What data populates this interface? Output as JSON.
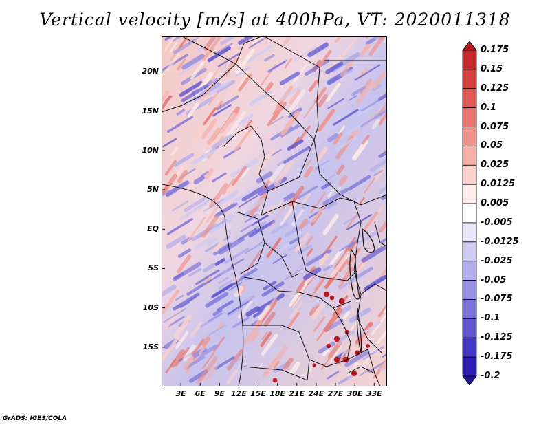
{
  "title": "Vertical velocity [m/s] at 400hPa, VT: 2020011318",
  "credit": "GrADS: IGES/COLA",
  "map": {
    "lon_range": [
      0,
      35
    ],
    "lat_range": [
      -20,
      24.5
    ],
    "yticks": [
      "20N",
      "15N",
      "10N",
      "5N",
      "EQ",
      "5S",
      "10S",
      "15S"
    ],
    "ytick_values": [
      20,
      15,
      10,
      5,
      0,
      -5,
      -10,
      -15
    ],
    "xticks": [
      "3E",
      "6E",
      "9E",
      "12E",
      "15E",
      "18E",
      "21E",
      "24E",
      "27E",
      "30E",
      "33E"
    ],
    "xtick_values": [
      3,
      6,
      9,
      12,
      15,
      18,
      21,
      24,
      27,
      30,
      33
    ]
  },
  "colorbar": {
    "labels": [
      "0.175",
      "0.15",
      "0.125",
      "0.1",
      "0.075",
      "0.05",
      "0.025",
      "0.0125",
      "0.005",
      "-0.005",
      "-0.0125",
      "-0.025",
      "-0.05",
      "-0.075",
      "-0.1",
      "-0.125",
      "-0.175",
      "-0.2"
    ],
    "colors": [
      "#b8161e",
      "#c62b2e",
      "#d4403e",
      "#df5a55",
      "#e8766f",
      "#ef948c",
      "#f5b2ab",
      "#fad2cd",
      "#fdeceb",
      "#ffffff",
      "#e8e6f7",
      "#cfcbf1",
      "#b3aeea",
      "#9891e3",
      "#7c74db",
      "#6057d1",
      "#4439c4",
      "#2e1eb3",
      "#24149a"
    ]
  }
}
